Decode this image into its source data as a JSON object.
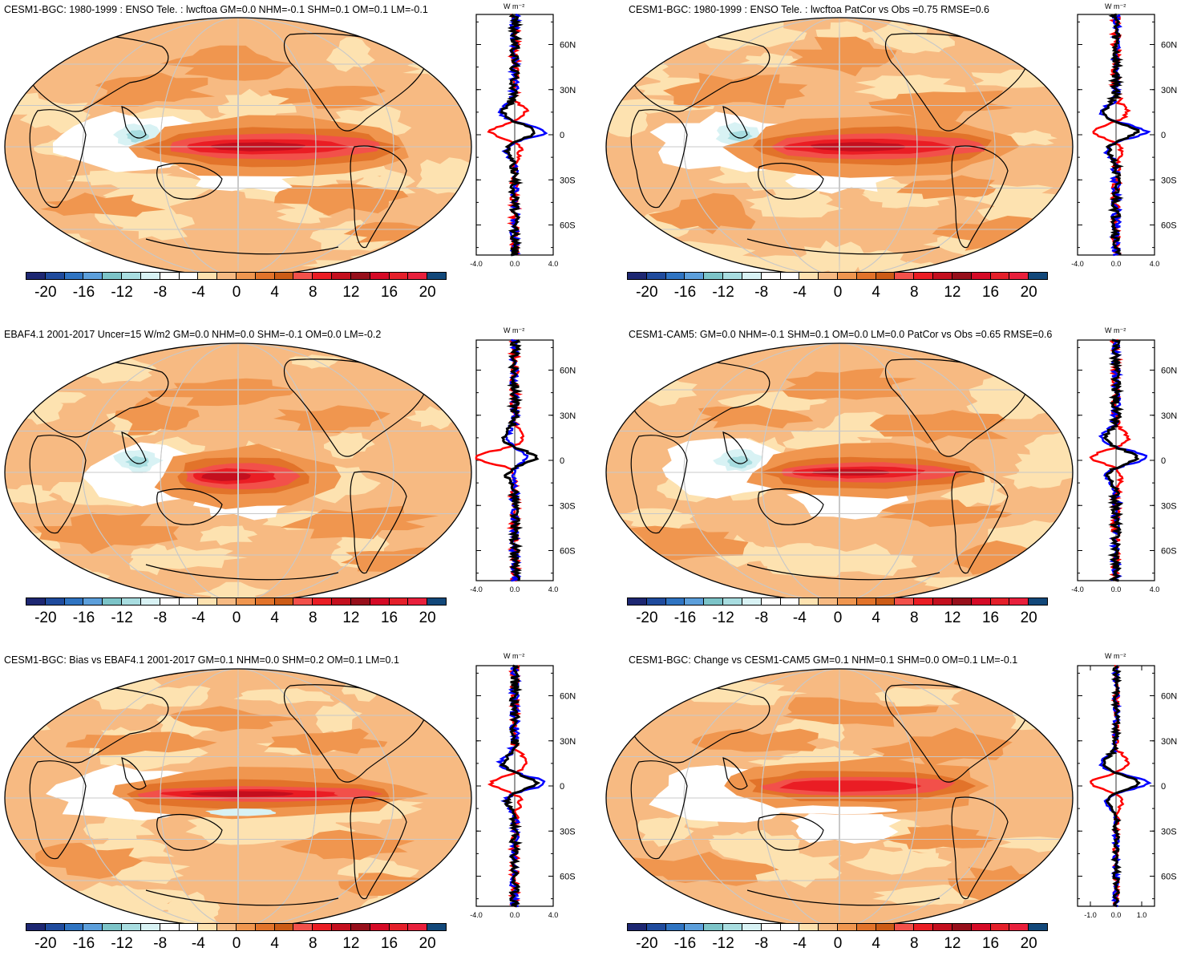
{
  "colorbar": {
    "levels": [
      "-20",
      "-16",
      "-12",
      "-8",
      "-4",
      "0",
      "4",
      "8",
      "12",
      "16",
      "20"
    ],
    "colors": [
      "#1d2772",
      "#1f4b9d",
      "#2f74c2",
      "#5c9fdb",
      "#7cc4c8",
      "#a8dde0",
      "#d8f2f4",
      "#ffffff",
      "#ffffff",
      "#fde2b0",
      "#f7ba82",
      "#f0964f",
      "#e2732a",
      "#cc5b16",
      "#f2504a",
      "#ea1d24",
      "#c40f1e",
      "#970f1b",
      "#d50a26",
      "#e41f2a",
      "#e8203c",
      "#12487a"
    ]
  },
  "series_colors": {
    "obs": "#ff0000",
    "model": "#0000ff",
    "diff": "#000000"
  },
  "panels": [
    {
      "title": "CESM1-BGC: 1980-1999 : ENSO Tele. : lwcftoa GM=0.0 NHM=-0.1 SHM=0.1 OM=0.1 LM=-0.1",
      "unit": "W m⁻²",
      "xticks": [
        "-4.0",
        "0.0",
        "4.0"
      ],
      "xrange": [
        -4,
        4
      ],
      "lat_ticks": [
        "60N",
        "30N",
        "0",
        "30S",
        "60S"
      ],
      "variant": "model"
    },
    {
      "title": "CESM1-BGC: 1980-1999 : ENSO Tele. : lwcftoa PatCor vs Obs =0.75 RMSE=0.6",
      "unit": "W m⁻²",
      "xticks": [
        "-4.0",
        "0.0",
        "4.0"
      ],
      "xrange": [
        -4,
        4
      ],
      "lat_ticks": [
        "60N",
        "30N",
        "0",
        "30S",
        "60S"
      ],
      "variant": "model"
    },
    {
      "title": "EBAF4.1 2001-2017 Uncer=15 W/m2 GM=0.0 NHM=0.0 SHM=-0.1 OM=0.0 LM=-0.2",
      "unit": "W m⁻²",
      "xticks": [
        "-4.0",
        "0.0",
        "4.0"
      ],
      "xrange": [
        -4,
        4
      ],
      "lat_ticks": [
        "60N",
        "30N",
        "0",
        "30S",
        "60S"
      ],
      "variant": "obs"
    },
    {
      "title": "CESM1-CAM5: GM=0.0 NHM=-0.1 SHM=0.1 OM=0.0 LM=0.0 PatCor vs Obs =0.65 RMSE=0.6",
      "unit": "W m⁻²",
      "xticks": [
        "-4.0",
        "0.0",
        "4.0"
      ],
      "xrange": [
        -4,
        4
      ],
      "lat_ticks": [
        "60N",
        "30N",
        "0",
        "30S",
        "60S"
      ],
      "variant": "model2"
    },
    {
      "title": "CESM1-BGC: Bias vs EBAF4.1 2001-2017 GM=0.1 NHM=0.0 SHM=0.2 OM=0.1 LM=0.1",
      "unit": "W m⁻²",
      "xticks": [
        "-4.0",
        "0.0",
        "4.0"
      ],
      "xrange": [
        -4,
        4
      ],
      "lat_ticks": [
        "60N",
        "30N",
        "0",
        "30S",
        "60S"
      ],
      "variant": "bias"
    },
    {
      "title": "CESM1-BGC: Change vs CESM1-CAM5 GM=0.1 NHM=0.1 SHM=0.0 OM=0.1 LM=-0.1",
      "unit": "W m⁻²",
      "xticks": [
        "-1.0",
        "0.0",
        "1.0"
      ],
      "xrange": [
        -1.5,
        1.5
      ],
      "lat_ticks": [
        "60N",
        "30N",
        "0",
        "30S",
        "60S"
      ],
      "variant": "change"
    }
  ]
}
